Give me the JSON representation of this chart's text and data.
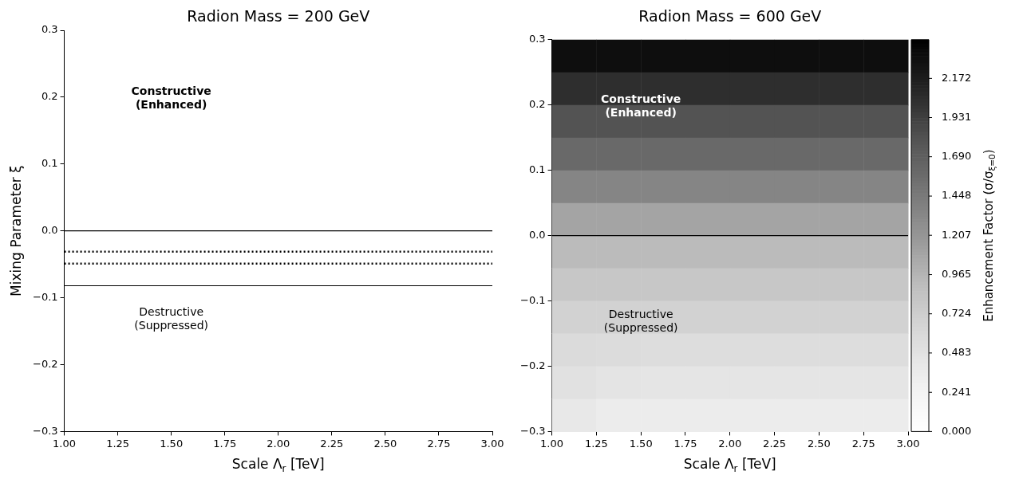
{
  "chart_data": [
    {
      "type": "heatmap",
      "title": "Radion Mass = 200 GeV",
      "xlabel": "Scale Λ$_{r}$ [TeV]",
      "ylabel": "Mixing Parameter ξ",
      "xlim": [
        1,
        3
      ],
      "xticks": [
        {
          "value": 1,
          "label": "1.00"
        },
        {
          "value": 1.25,
          "label": "1.25"
        },
        {
          "value": 1.5,
          "label": "1.50"
        },
        {
          "value": 1.75,
          "label": "1.75"
        },
        {
          "value": 2,
          "label": "2.00"
        },
        {
          "value": 2.25,
          "label": "2.25"
        },
        {
          "value": 2.5,
          "label": "2.50"
        },
        {
          "value": 2.75,
          "label": "2.75"
        },
        {
          "value": 3,
          "label": "3.00"
        }
      ],
      "ylim": [
        -0.3,
        0.3
      ],
      "yticks": [
        {
          "value": -0.3,
          "label": "−0.3"
        },
        {
          "value": -0.2,
          "label": "−0.2"
        },
        {
          "value": -0.1,
          "label": "−0.1"
        },
        {
          "value": 0,
          "label": "0.0"
        },
        {
          "value": 0.1,
          "label": "0.1"
        },
        {
          "value": 0.2,
          "label": "0.2"
        },
        {
          "value": 0.3,
          "label": "0.3"
        }
      ],
      "ref_lines": [
        {
          "axis": "y",
          "value": 0,
          "color": "#000000",
          "line_style": "solid"
        },
        {
          "axis": "y",
          "value": -0.031,
          "color": "#000000",
          "line_style": "dotted"
        },
        {
          "axis": "y",
          "value": -0.049,
          "color": "#000000",
          "line_style": "dotted"
        },
        {
          "axis": "y",
          "value": -0.082,
          "color": "#000000",
          "line_style": "solid"
        }
      ],
      "annotations": [
        "Constructive\n(Enhanced)",
        "Destructive\n(Suppressed)"
      ]
    },
    {
      "type": "heatmap",
      "title": "Radion Mass = 600 GeV",
      "xlabel": "Scale Λ$_{r}$ [TeV]",
      "clabel": "Enhancement Factor (σ/σ$_{ξ=0}$)",
      "xlim": [
        1,
        3
      ],
      "xticks": [
        {
          "value": 1,
          "label": "1.00"
        },
        {
          "value": 1.25,
          "label": "1.25"
        },
        {
          "value": 1.5,
          "label": "1.50"
        },
        {
          "value": 1.75,
          "label": "1.75"
        },
        {
          "value": 2,
          "label": "2.00"
        },
        {
          "value": 2.25,
          "label": "2.25"
        },
        {
          "value": 2.5,
          "label": "2.50"
        },
        {
          "value": 2.75,
          "label": "2.75"
        },
        {
          "value": 3,
          "label": "3.00"
        }
      ],
      "ylim": [
        -0.3,
        0.3
      ],
      "yticks": [
        {
          "value": -0.3,
          "label": "−0.3"
        },
        {
          "value": -0.2,
          "label": "−0.2"
        },
        {
          "value": -0.1,
          "label": "−0.1"
        },
        {
          "value": 0,
          "label": "0.0"
        },
        {
          "value": 0.1,
          "label": "0.1"
        },
        {
          "value": 0.2,
          "label": "0.2"
        },
        {
          "value": 0.3,
          "label": "0.3"
        }
      ],
      "clim": [
        0,
        2.41
      ],
      "cticks": [
        {
          "value": 0,
          "label": "0.000"
        },
        0.241,
        0.483,
        0.724,
        0.965,
        1.207,
        1.448,
        {
          "value": 1.69,
          "label": "1.690"
        },
        1.931,
        2.172
      ],
      "cells": [
        [
          2.3,
          2.3,
          2.3,
          2.3,
          2.3,
          2.3,
          2.3,
          2.3
        ],
        [
          2.05,
          2.05,
          2.05,
          2.05,
          2.05,
          2.05,
          2.05,
          2.05
        ],
        [
          1.8,
          1.8,
          1.8,
          1.8,
          1.8,
          1.8,
          1.8,
          1.8
        ],
        [
          1.6,
          1.6,
          1.6,
          1.6,
          1.6,
          1.6,
          1.6,
          1.6
        ],
        [
          1.35,
          1.35,
          1.35,
          1.35,
          1.35,
          1.35,
          1.35,
          1.35
        ],
        [
          1.1,
          1.1,
          1.1,
          1.1,
          1.1,
          1.1,
          1.1,
          1.1
        ],
        [
          0.92,
          0.92,
          0.92,
          0.92,
          0.92,
          0.92,
          0.92,
          0.92
        ],
        [
          0.8,
          0.8,
          0.8,
          0.8,
          0.8,
          0.8,
          0.8,
          0.8
        ],
        [
          0.68,
          0.68,
          0.68,
          0.68,
          0.68,
          0.68,
          0.68,
          0.68
        ],
        [
          0.58,
          0.56,
          0.55,
          0.55,
          0.55,
          0.55,
          0.55,
          0.55
        ],
        [
          0.5,
          0.46,
          0.45,
          0.45,
          0.45,
          0.45,
          0.45,
          0.45
        ],
        [
          0.4,
          0.36,
          0.35,
          0.35,
          0.35,
          0.35,
          0.35,
          0.35
        ]
      ],
      "ref_lines": [
        {
          "axis": "y",
          "value": 0,
          "color": "#000000",
          "line_style": "solid"
        }
      ],
      "annotations": [
        "Constructive\n(Enhanced)",
        "Destructive\n(Suppressed)"
      ]
    }
  ]
}
